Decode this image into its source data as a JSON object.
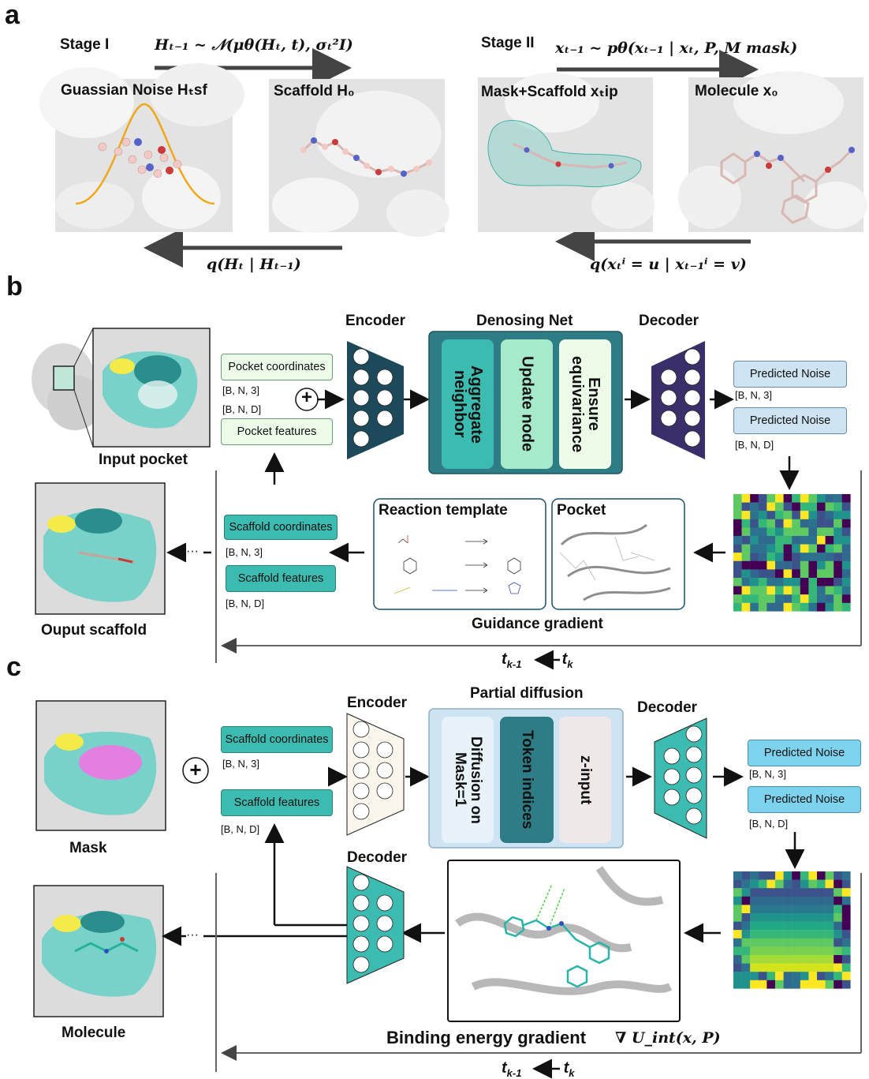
{
  "panel_a": {
    "letter": "a",
    "stage1": {
      "title": "Stage I",
      "forward_formula": "Hₜ₋₁ ~ 𝒩(μθ(Hₜ, t), σₜ²I)",
      "reverse_formula": "q(Hₜ | Hₜ₋₁)"
    },
    "stage2": {
      "title": "Stage II",
      "forward_formula": "xₜ₋₁ ~ pθ(xₜ₋₁ | xₜ, P, M mask)",
      "reverse_formula": "q(xₜⁱ = u | xₜ₋₁ⁱ = v)"
    },
    "images": [
      "Guassian Noise Hₜsf",
      "Scaffold H₀",
      "Mask+Scaffold xₜip",
      "Molecule x₀"
    ]
  },
  "panel_b": {
    "letter": "b",
    "input_pocket": "Input pocket",
    "output_scaffold": "Ouput scaffold",
    "pocket_coordinates": "Pocket coordinates",
    "pocket_features": "Pocket features",
    "dim_bn3": "[B, N, 3]",
    "dim_bnd": "[B, N, D]",
    "plus": "+",
    "encoder": "Encoder",
    "denoising_net": "Denosing Net",
    "net_blocks": [
      "Aggregate neighbor",
      "Update node",
      "Ensure equivariance"
    ],
    "decoder": "Decoder",
    "predicted_noise": "Predicted Noise",
    "scaffold_coordinates": "Scaffold coordinates",
    "scaffold_features": "Scaffold features",
    "reaction_template": "Reaction template",
    "pocket": "Pocket",
    "guidance_gradient": "Guidance gradient",
    "dots": "···",
    "time_step": {
      "from": "t",
      "from_sub": "k-1",
      "to": "t",
      "to_sub": "k"
    }
  },
  "panel_c": {
    "letter": "c",
    "mask": "Mask",
    "molecule": "Molecule",
    "scaffold_coordinates": "Scaffold coordinates",
    "scaffold_features": "Scaffold features",
    "dim_bn3": "[B, N, 3]",
    "dim_bnd": "[B, N, D]",
    "plus": "+",
    "encoder": "Encoder",
    "partial_diffusion": "Partial diffusion",
    "diffusion_blocks": [
      "Diffusion on Mask=1",
      "Token indices",
      "z-input"
    ],
    "decoder": "Decoder",
    "decoder2": "Decoder",
    "predicted_noise": "Predicted Noise",
    "binding_energy_gradient": "Binding energy gradient",
    "binding_formula": "∇ U_int(x, P)",
    "dots": "···",
    "time_step": {
      "from": "t",
      "from_sub": "k-1",
      "to": "t",
      "to_sub": "k"
    }
  },
  "colors": {
    "teal_dark": "#2e7d86",
    "teal": "#3cbbb1",
    "light_mint": "#a6e9cb",
    "pale_green": "#edfbe9",
    "light_blue": "#cfe4f2",
    "navy_net": "#1d4a5b",
    "purple_net": "#3a2f6b",
    "arrow_gray": "#555555"
  }
}
